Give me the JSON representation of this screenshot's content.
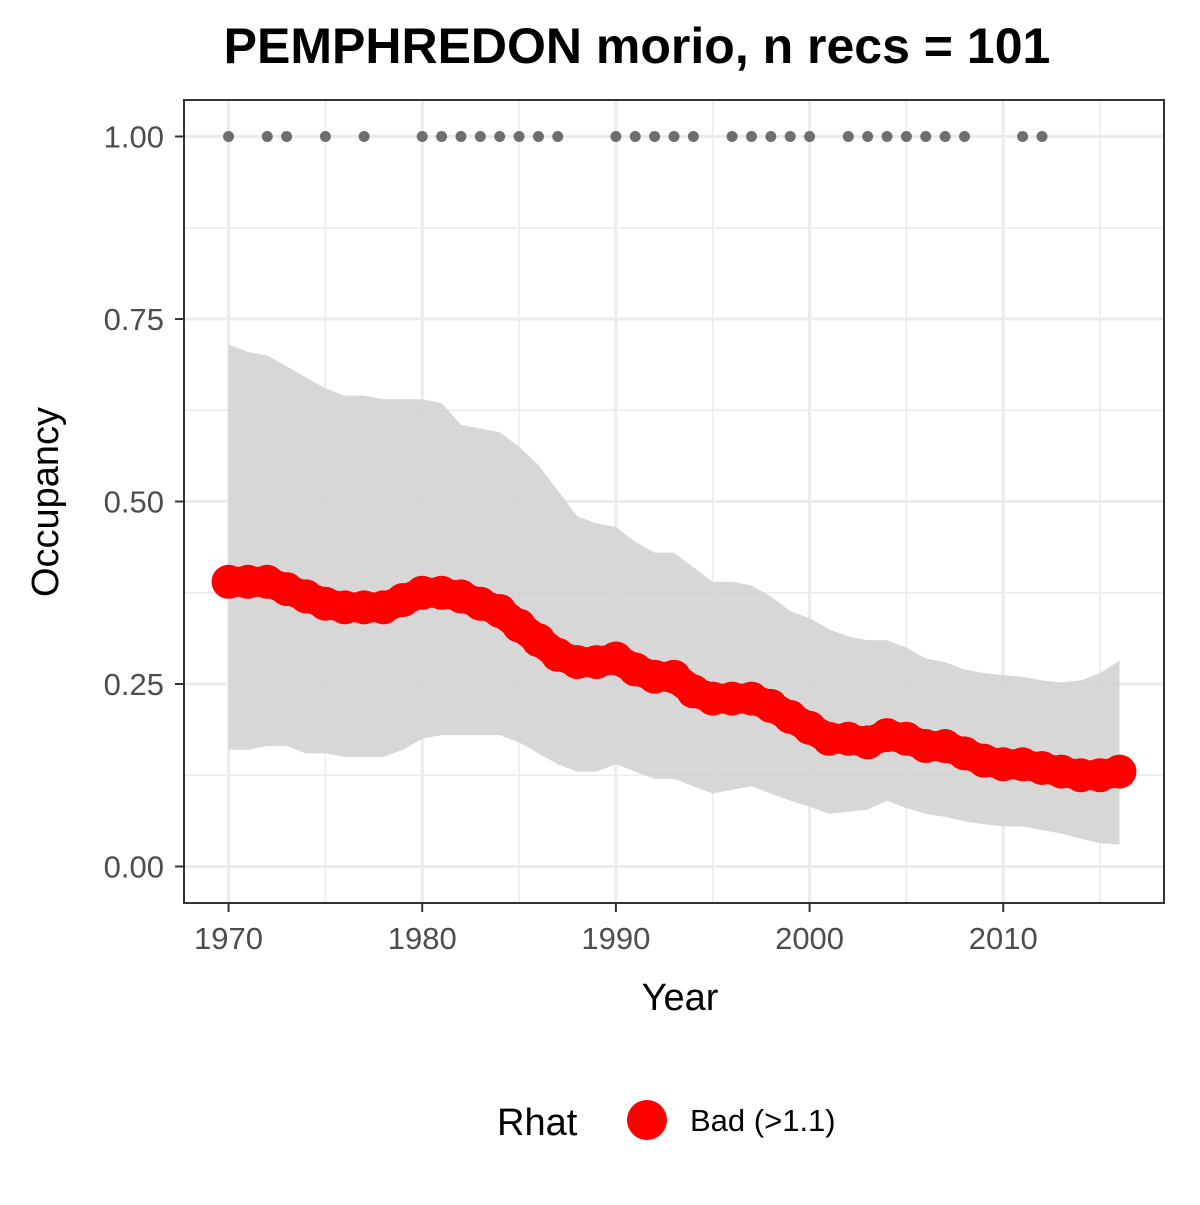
{
  "chart_data": {
    "type": "line",
    "title": "PEMPHREDON morio, n recs = 101",
    "xlabel": "Year",
    "ylabel": "Occupancy",
    "xlim": [
      1967.7,
      2018.3
    ],
    "ylim": [
      -0.05,
      1.05
    ],
    "x_ticks": [
      1970,
      1980,
      1990,
      2000,
      2010
    ],
    "y_ticks": [
      0.0,
      0.25,
      0.5,
      0.75,
      1.0
    ],
    "y_tick_labels": [
      "0.00",
      "0.25",
      "0.50",
      "0.75",
      "1.00"
    ],
    "x_minor_ticks": [
      1975,
      1985,
      1995,
      2005,
      2015
    ],
    "y_minor_ticks": [
      0.125,
      0.375,
      0.625,
      0.875
    ],
    "grid": true,
    "legend": {
      "position": "bottom",
      "title": "Rhat",
      "entries": [
        {
          "label": "Bad (>1.1)",
          "color": "#ff0000"
        }
      ]
    },
    "series": [
      {
        "kind": "mean",
        "color": "#ff0000",
        "x": [
          1970,
          1971,
          1972,
          1973,
          1974,
          1975,
          1976,
          1977,
          1978,
          1979,
          1980,
          1981,
          1982,
          1983,
          1984,
          1985,
          1986,
          1987,
          1988,
          1989,
          1990,
          1991,
          1992,
          1993,
          1994,
          1995,
          1996,
          1997,
          1998,
          1999,
          2000,
          2001,
          2002,
          2003,
          2004,
          2005,
          2006,
          2007,
          2008,
          2009,
          2010,
          2011,
          2012,
          2013,
          2014,
          2015,
          2016
        ],
        "y": [
          0.39,
          0.39,
          0.39,
          0.38,
          0.37,
          0.36,
          0.355,
          0.355,
          0.355,
          0.365,
          0.375,
          0.375,
          0.37,
          0.36,
          0.35,
          0.33,
          0.31,
          0.29,
          0.28,
          0.28,
          0.285,
          0.27,
          0.26,
          0.26,
          0.24,
          0.23,
          0.23,
          0.23,
          0.22,
          0.205,
          0.19,
          0.175,
          0.175,
          0.17,
          0.18,
          0.175,
          0.165,
          0.165,
          0.155,
          0.145,
          0.14,
          0.14,
          0.135,
          0.13,
          0.125,
          0.125,
          0.13
        ]
      },
      {
        "kind": "credible-interval",
        "color": "#d3d3d3",
        "x": [
          1970,
          1971,
          1972,
          1973,
          1974,
          1975,
          1976,
          1977,
          1978,
          1979,
          1980,
          1981,
          1982,
          1983,
          1984,
          1985,
          1986,
          1987,
          1988,
          1989,
          1990,
          1991,
          1992,
          1993,
          1994,
          1995,
          1996,
          1997,
          1998,
          1999,
          2000,
          2001,
          2002,
          2003,
          2004,
          2005,
          2006,
          2007,
          2008,
          2009,
          2010,
          2011,
          2012,
          2013,
          2014,
          2015,
          2016
        ],
        "lower": [
          0.16,
          0.16,
          0.165,
          0.165,
          0.155,
          0.155,
          0.15,
          0.15,
          0.15,
          0.16,
          0.175,
          0.18,
          0.18,
          0.18,
          0.18,
          0.17,
          0.155,
          0.14,
          0.13,
          0.13,
          0.14,
          0.13,
          0.12,
          0.12,
          0.11,
          0.1,
          0.105,
          0.11,
          0.1,
          0.09,
          0.082,
          0.072,
          0.075,
          0.078,
          0.09,
          0.08,
          0.072,
          0.068,
          0.062,
          0.058,
          0.055,
          0.055,
          0.05,
          0.045,
          0.038,
          0.032,
          0.03
        ],
        "upper": [
          0.715,
          0.705,
          0.7,
          0.685,
          0.67,
          0.655,
          0.645,
          0.645,
          0.64,
          0.64,
          0.64,
          0.635,
          0.605,
          0.6,
          0.595,
          0.575,
          0.55,
          0.515,
          0.48,
          0.47,
          0.465,
          0.445,
          0.43,
          0.43,
          0.41,
          0.39,
          0.39,
          0.385,
          0.37,
          0.35,
          0.34,
          0.325,
          0.315,
          0.31,
          0.31,
          0.3,
          0.285,
          0.28,
          0.27,
          0.265,
          0.262,
          0.26,
          0.255,
          0.252,
          0.255,
          0.265,
          0.282
        ]
      },
      {
        "kind": "records",
        "color": "#6e6e6e",
        "x": [
          1970,
          1972,
          1973,
          1975,
          1977,
          1980,
          1981,
          1982,
          1983,
          1984,
          1985,
          1986,
          1987,
          1990,
          1991,
          1992,
          1993,
          1994,
          1996,
          1997,
          1998,
          1999,
          2000,
          2002,
          2003,
          2004,
          2005,
          2006,
          2007,
          2008,
          2011,
          2012
        ],
        "y": [
          1,
          1,
          1,
          1,
          1,
          1,
          1,
          1,
          1,
          1,
          1,
          1,
          1,
          1,
          1,
          1,
          1,
          1,
          1,
          1,
          1,
          1,
          1,
          1,
          1,
          1,
          1,
          1,
          1,
          1,
          1,
          1
        ]
      }
    ]
  }
}
